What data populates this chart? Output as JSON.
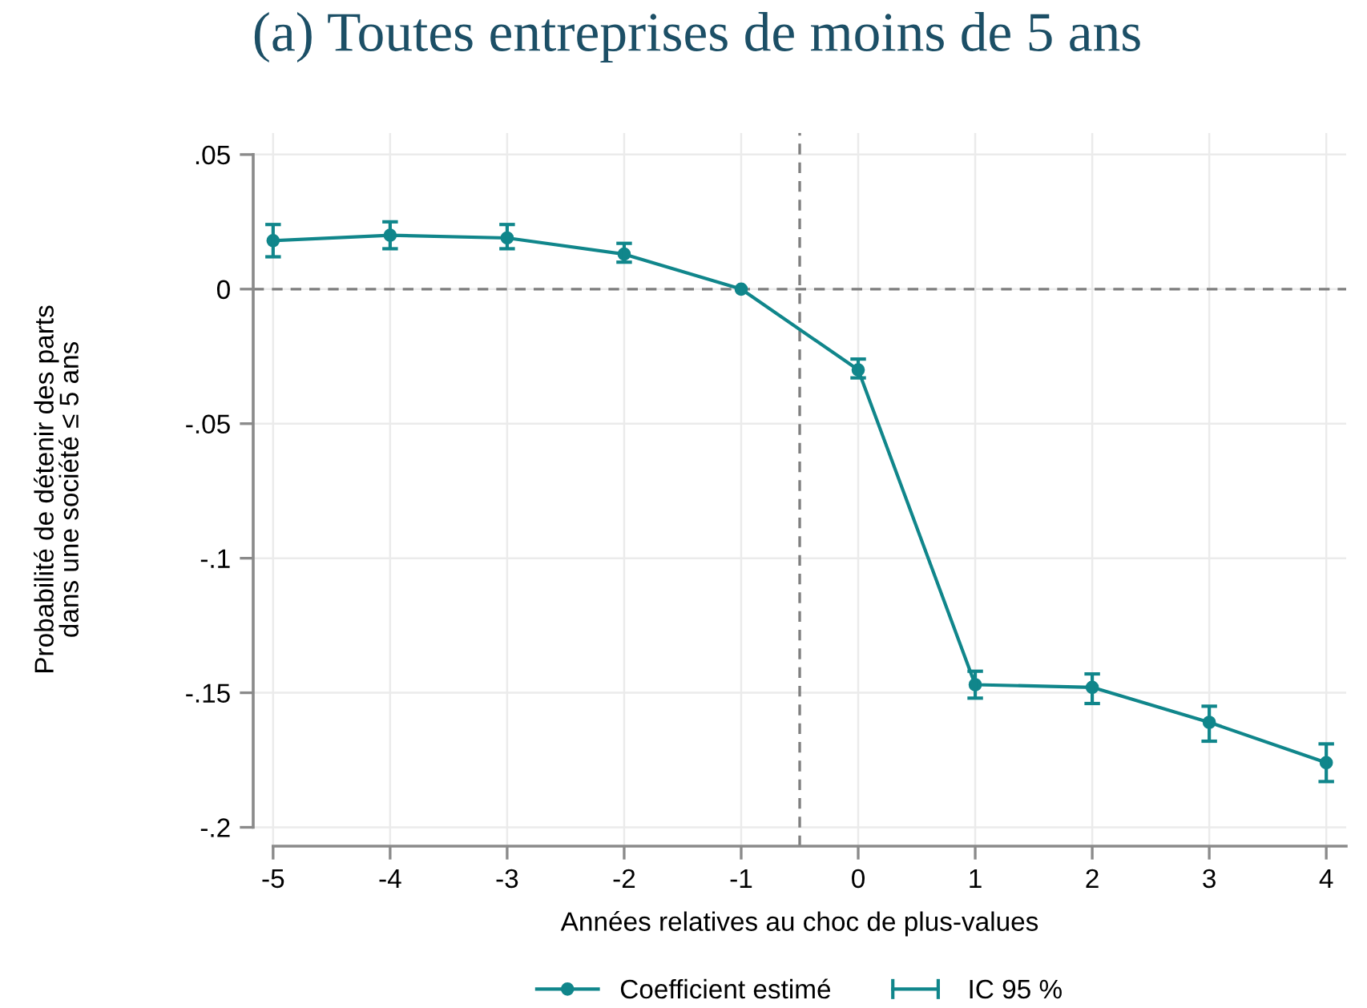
{
  "chart_data": {
    "type": "line",
    "title": "(a) Toutes entreprises de moins de 5 ans",
    "xlabel": "Années relatives au choc de plus-values",
    "ylabel": "Probabilité de détenir des parts\ndans une société ≤ 5 ans",
    "x": [
      -5,
      -4,
      -3,
      -2,
      -1,
      0,
      1,
      2,
      3,
      4
    ],
    "series": [
      {
        "name": "Coefficient estimé",
        "marker": "circle",
        "color": "#10868b",
        "values": [
          0.018,
          0.02,
          0.019,
          0.013,
          0,
          -0.03,
          -0.147,
          -0.148,
          -0.161,
          -0.176
        ],
        "errors": [
          [
            0.012,
            0.024
          ],
          [
            0.015,
            0.025
          ],
          [
            0.015,
            0.024
          ],
          [
            0.01,
            0.017
          ],
          null,
          [
            -0.033,
            -0.026
          ],
          [
            -0.152,
            -0.142
          ],
          [
            -0.154,
            -0.143
          ],
          [
            -0.168,
            -0.155
          ],
          [
            -0.183,
            -0.169
          ]
        ]
      },
      {
        "name": "IC 95 %",
        "type": "scatter",
        "marker": "none",
        "color": "#10868b",
        "values": [
          null,
          null,
          null,
          null,
          null,
          null,
          null,
          null,
          null,
          null
        ]
      }
    ],
    "xlim": [
      -5.17,
      4.17
    ],
    "xticks": [
      -5,
      -4,
      -3,
      -2,
      -1,
      0,
      1,
      2,
      3,
      4
    ],
    "ylim": [
      -0.207,
      0.058
    ],
    "yticks": [
      {
        "value": 0.05,
        "label": ".05"
      },
      0,
      {
        "value": -0.05,
        "label": "-.05"
      },
      {
        "value": -0.1,
        "label": "-.1"
      },
      {
        "value": -0.15,
        "label": "-.15"
      },
      {
        "value": -0.2,
        "label": "-.2"
      }
    ],
    "ref_lines": [
      {
        "axis": "y",
        "value": 0,
        "line_style": "dashed",
        "color": "#7f7f7f"
      },
      {
        "axis": "x",
        "value": -0.5,
        "line_style": "dashed",
        "color": "#7f7f7f"
      }
    ],
    "grid": true,
    "legend": "bottom"
  }
}
